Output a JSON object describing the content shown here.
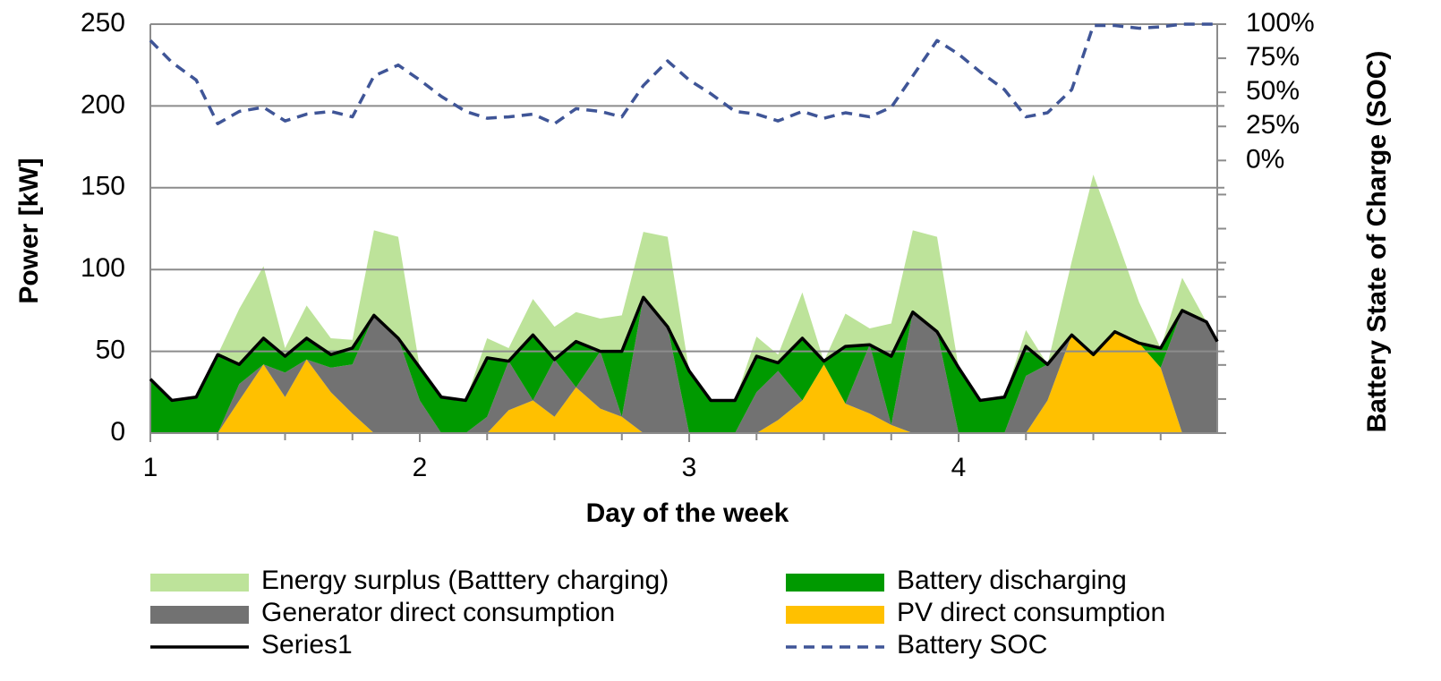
{
  "chart_data": {
    "type": "area",
    "x_label": "Day of the week",
    "y_label": "Power [kW]",
    "y2_label": "Battery State of Charge (SOC)",
    "x": [
      1,
      1.08,
      1.17,
      1.25,
      1.33,
      1.42,
      1.5,
      1.58,
      1.67,
      1.75,
      1.83,
      1.92,
      2,
      2.08,
      2.17,
      2.25,
      2.33,
      2.42,
      2.5,
      2.58,
      2.67,
      2.75,
      2.83,
      2.92,
      3,
      3.08,
      3.17,
      3.25,
      3.33,
      3.42,
      3.5,
      3.58,
      3.67,
      3.75,
      3.83,
      3.92,
      4,
      4.08,
      4.17,
      4.25,
      4.33,
      4.42,
      4.5,
      4.58,
      4.67,
      4.75,
      4.83,
      4.92,
      4.96
    ],
    "xlim": [
      1,
      4.96
    ],
    "xticks": [
      1,
      2,
      3,
      4
    ],
    "ylim": [
      0,
      250
    ],
    "yticks": [
      0,
      50,
      100,
      150,
      200,
      250
    ],
    "y2lim": [
      -200,
      100
    ],
    "y2ticks": [
      {
        "value": 0,
        "label": "0%"
      },
      {
        "value": 25,
        "label": "25%"
      },
      {
        "value": 50,
        "label": "50%"
      },
      {
        "value": 75,
        "label": "75%"
      },
      {
        "value": 100,
        "label": "100%"
      }
    ],
    "grid": true,
    "legend": "bottom",
    "series": [
      {
        "name": "Energy surplus (Batttery charging)",
        "type": "area",
        "color": "#bde39a",
        "values": [
          0,
          0,
          0,
          0,
          34,
          44,
          5,
          20,
          10,
          5,
          52,
          62,
          0,
          0,
          0,
          12,
          8,
          22,
          20,
          18,
          20,
          22,
          40,
          55,
          0,
          0,
          0,
          12,
          5,
          28,
          0,
          20,
          10,
          20,
          50,
          58,
          0,
          0,
          0,
          10,
          0,
          45,
          110,
          60,
          25,
          0,
          20,
          0,
          0
        ]
      },
      {
        "name": "Battery discharging",
        "type": "area",
        "color": "#009a00",
        "values": [
          33,
          20,
          22,
          48,
          12,
          16,
          10,
          13,
          8,
          10,
          0,
          0,
          20,
          22,
          20,
          36,
          0,
          40,
          0,
          28,
          0,
          40,
          0,
          0,
          38,
          20,
          20,
          22,
          5,
          38,
          2,
          35,
          0,
          42,
          0,
          0,
          40,
          20,
          22,
          18,
          0,
          0,
          0,
          0,
          0,
          12,
          0,
          0,
          0
        ]
      },
      {
        "name": "Generator direct consumption",
        "type": "area",
        "color": "#727272",
        "values": [
          0,
          0,
          0,
          0,
          10,
          0,
          15,
          0,
          15,
          30,
          72,
          58,
          20,
          0,
          0,
          10,
          30,
          0,
          35,
          0,
          35,
          0,
          83,
          65,
          0,
          0,
          0,
          25,
          30,
          0,
          0,
          0,
          42,
          0,
          74,
          62,
          0,
          0,
          0,
          35,
          22,
          0,
          0,
          0,
          0,
          0,
          75,
          68,
          56
        ]
      },
      {
        "name": "PV direct consumption",
        "type": "area",
        "color": "#ffc000",
        "values": [
          0,
          0,
          0,
          0,
          20,
          42,
          22,
          45,
          25,
          12,
          0,
          0,
          0,
          0,
          0,
          0,
          14,
          20,
          10,
          28,
          15,
          10,
          0,
          0,
          0,
          0,
          0,
          0,
          8,
          20,
          42,
          18,
          12,
          5,
          0,
          0,
          0,
          0,
          0,
          0,
          20,
          60,
          48,
          62,
          55,
          40,
          0,
          0,
          0
        ]
      },
      {
        "name": "Series1",
        "type": "line",
        "color": "#000000",
        "values": [
          33,
          20,
          22,
          48,
          42,
          58,
          47,
          58,
          48,
          52,
          72,
          58,
          40,
          22,
          20,
          46,
          44,
          60,
          45,
          56,
          50,
          50,
          83,
          65,
          38,
          20,
          20,
          47,
          43,
          58,
          44,
          53,
          54,
          47,
          74,
          62,
          40,
          20,
          22,
          53,
          42,
          60,
          48,
          62,
          55,
          52,
          75,
          68,
          56
        ]
      },
      {
        "name": "Battery SOC",
        "type": "line",
        "dash": true,
        "axis": "y2",
        "color": "#3f5597",
        "values": [
          88,
          72,
          59,
          27,
          36,
          39,
          29,
          34,
          36,
          32,
          62,
          70,
          59,
          47,
          36,
          31,
          32,
          34,
          27,
          38,
          36,
          32,
          55,
          73,
          59,
          49,
          36,
          34,
          29,
          36,
          31,
          35,
          32,
          39,
          62,
          88,
          78,
          65,
          52,
          32,
          35,
          52,
          99,
          99,
          97,
          98,
          100,
          100,
          100
        ]
      }
    ]
  }
}
